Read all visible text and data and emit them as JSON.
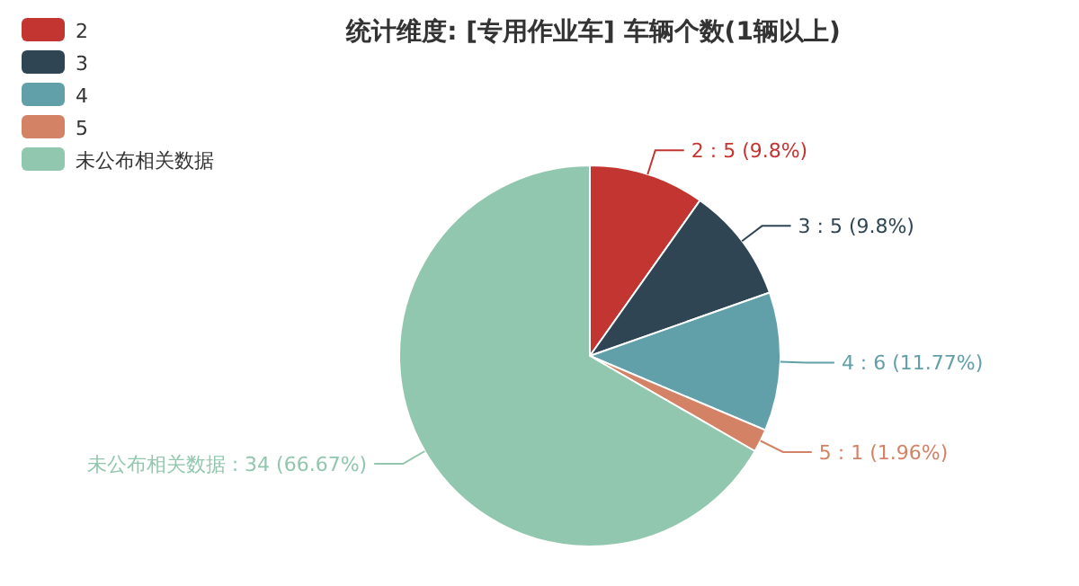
{
  "chart_data": {
    "type": "pie",
    "title": "统计维度: [专用作业车] 车辆个数(1辆以上)",
    "categories": [
      "2",
      "3",
      "4",
      "5",
      "未公布相关数据"
    ],
    "values": [
      5,
      5,
      6,
      1,
      34
    ],
    "colors": [
      "#c23531",
      "#2f4554",
      "#61a0a8",
      "#d48265",
      "#91c7ae"
    ],
    "value_labels": [
      "2 : 5 (9.8%)",
      "3 : 5 (9.8%)",
      "4 : 6 (11.77%)",
      "5 : 1 (1.96%)",
      "未公布相关数据 : 34 (66.67%)"
    ],
    "legend": "top left"
  }
}
